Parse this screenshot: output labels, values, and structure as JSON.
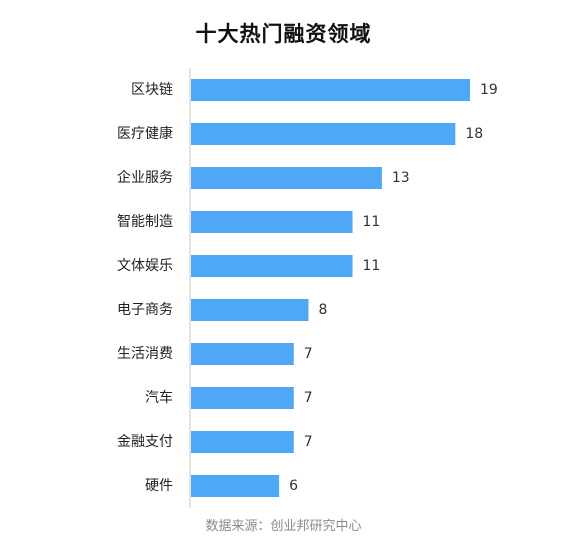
{
  "chart_data": {
    "type": "bar",
    "orientation": "horizontal",
    "title": "十大热门融资领域",
    "categories": [
      "区块链",
      "医疗健康",
      "企业服务",
      "智能制造",
      "文体娱乐",
      "电子商务",
      "生活消费",
      "汽车",
      "金融支付",
      "硬件"
    ],
    "values": [
      19,
      18,
      13,
      11,
      11,
      8,
      7,
      7,
      7,
      6
    ],
    "xlim": [
      0,
      20
    ],
    "grid": false,
    "legend": "none",
    "bar_color": "#4EA8F5",
    "axis_color": "#c8c8c8",
    "source": "数据来源：创业邦研究中心"
  }
}
